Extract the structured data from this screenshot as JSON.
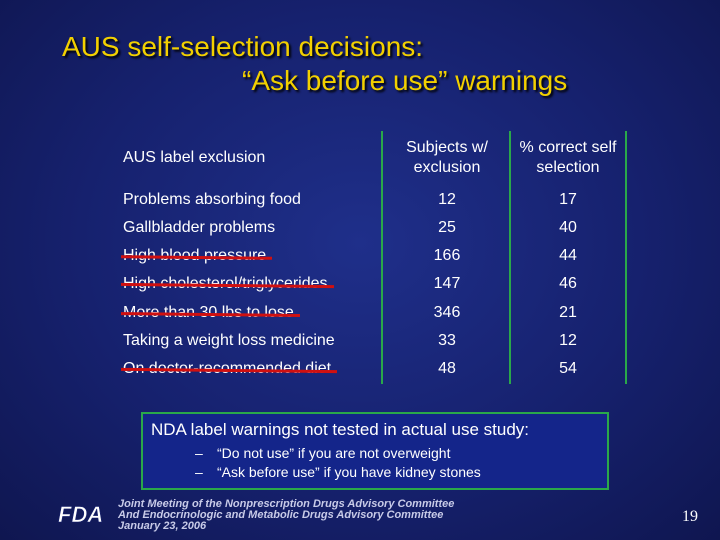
{
  "slide": {
    "title_line1": "AUS self-selection decisions:",
    "title_line2": "“Ask before use” warnings",
    "table": {
      "headers": [
        "AUS label exclusion",
        "Subjects w/ exclusion",
        "% correct self selection"
      ],
      "rows": [
        {
          "label": "Problems absorbing food",
          "subjects": "12",
          "correct": "17",
          "struck": false
        },
        {
          "label": "Gallbladder problems",
          "subjects": "25",
          "correct": "40",
          "struck": false
        },
        {
          "label": "High blood pressure",
          "subjects": "166",
          "correct": "44",
          "struck": true
        },
        {
          "label": "High cholesterol/triglycerides",
          "subjects": "147",
          "correct": "46",
          "struck": true
        },
        {
          "label": "More than 30 lbs to lose",
          "subjects": "346",
          "correct": "21",
          "struck": true
        },
        {
          "label": "Taking a weight loss medicine",
          "subjects": "33",
          "correct": "12",
          "struck": false
        },
        {
          "label": "On doctor-recommended diet",
          "subjects": "48",
          "correct": "54",
          "struck": true
        }
      ]
    },
    "note": {
      "title": "NDA label warnings not tested in actual use study:",
      "items": [
        "“Do not use” if you are not overweight",
        "“Ask before use” if you have kidney stones"
      ]
    },
    "footer": {
      "line1": "Joint Meeting of the Nonprescription Drugs Advisory Committee",
      "line2": "And Endocrinologic and Metabolic Drugs Advisory Committee",
      "line3": "January 23, 2006"
    },
    "logo_text": "FDA",
    "page_number": "19",
    "colors": {
      "title": "#f2d000",
      "border": "#2aa84a",
      "strike": "#d01010"
    }
  }
}
